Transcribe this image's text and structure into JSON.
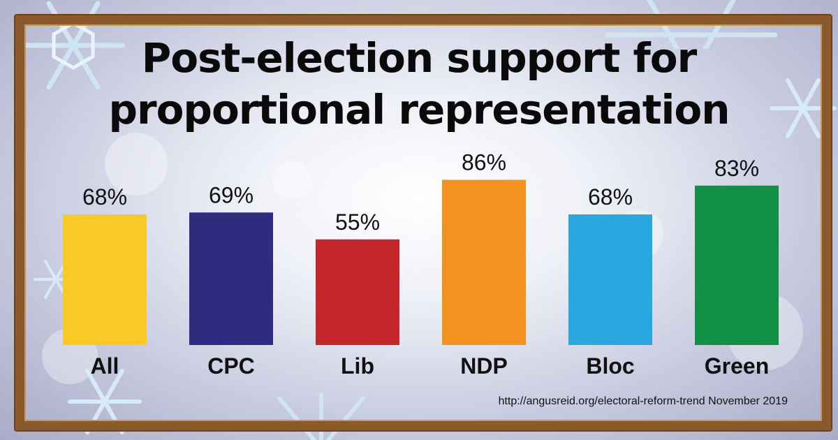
{
  "title_line1": "Post-election support for",
  "title_line2": "proportional representation",
  "source": "http://angusreid.org/electoral-reform-trend November 2019",
  "colors": {
    "frame": "#8a5a2c",
    "all": "#f9c928",
    "cpc": "#2d2c7e",
    "lib": "#c3272d",
    "ndp": "#f4921f",
    "bloc": "#2aa7df",
    "green": "#109146"
  },
  "chart_data": {
    "type": "bar",
    "title": "Post-election support for proportional representation",
    "categories": [
      "All",
      "CPC",
      "Lib",
      "NDP",
      "Bloc",
      "Green"
    ],
    "values": [
      68,
      69,
      55,
      86,
      68,
      83
    ],
    "value_labels": [
      "68%",
      "69%",
      "55%",
      "86%",
      "68%",
      "83%"
    ],
    "colors": [
      "#f9c928",
      "#2d2c7e",
      "#c3272d",
      "#f4921f",
      "#2aa7df",
      "#109146"
    ],
    "ylim": [
      0,
      100
    ],
    "grid": false,
    "legend": "none"
  }
}
